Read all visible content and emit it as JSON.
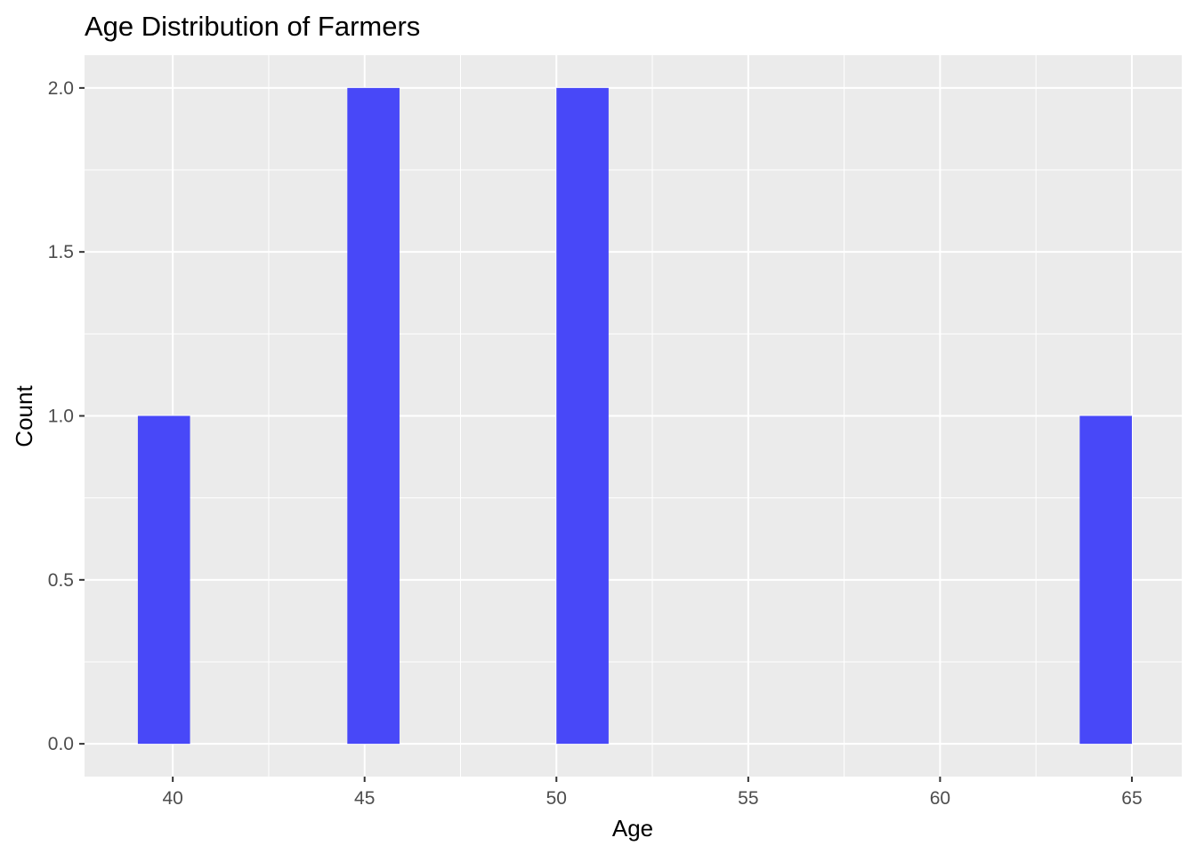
{
  "chart_data": {
    "type": "bar",
    "title": "Age Distribution of Farmers",
    "xlabel": "Age",
    "ylabel": "Count",
    "x_ticks": [
      40,
      45,
      50,
      55,
      60,
      65
    ],
    "y_ticks": [
      0.0,
      0.5,
      1.0,
      1.5,
      2.0
    ],
    "y_tick_labels": [
      "0.0",
      "0.5",
      "1.0",
      "1.5",
      "2.0"
    ],
    "xlim": [
      37.7,
      66.3
    ],
    "ylim": [
      -0.1,
      2.1
    ],
    "bin_width": 1.36,
    "bins": [
      {
        "x": 39.77,
        "count": 1
      },
      {
        "x": 45.23,
        "count": 2
      },
      {
        "x": 50.68,
        "count": 2
      },
      {
        "x": 64.32,
        "count": 1
      }
    ],
    "fill_color": "#4848f8",
    "panel_background": "#ebebeb",
    "grid": true,
    "legend": "none"
  }
}
